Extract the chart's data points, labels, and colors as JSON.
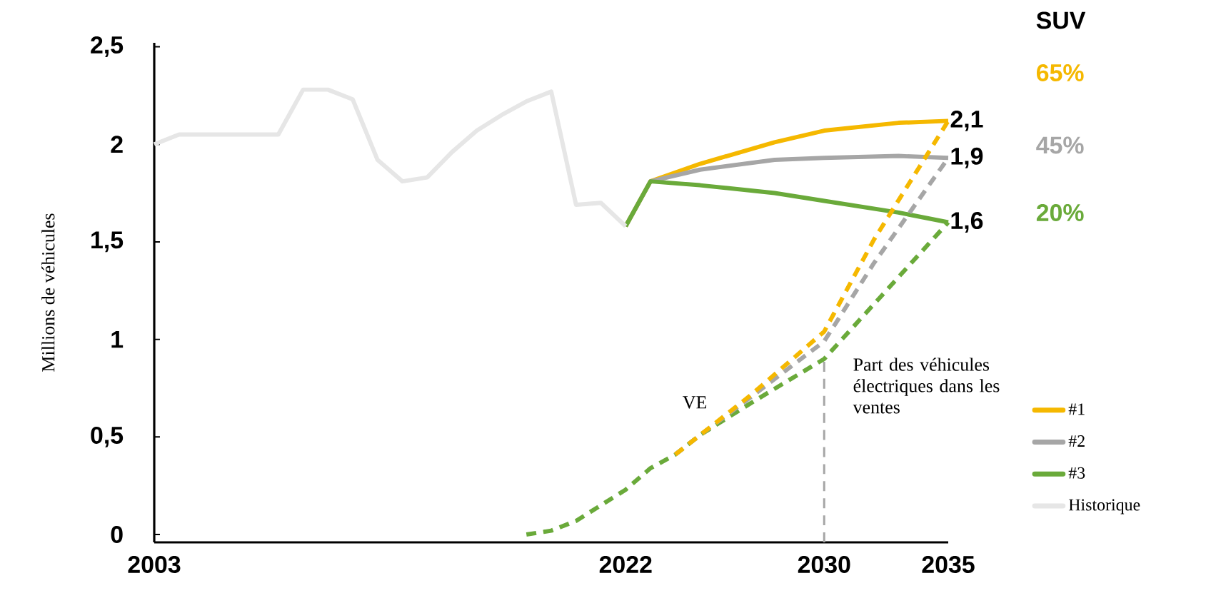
{
  "chart_data": {
    "type": "line",
    "ylabel": "Millions de véhicules",
    "xlim": [
      2003,
      2035
    ],
    "xticks": [
      2003,
      2022,
      2030,
      2035
    ],
    "ylim": [
      -0.04,
      2.52
    ],
    "yticks": [
      0,
      {
        "value": 0.5,
        "label": "0,5"
      },
      1,
      {
        "value": 1.5,
        "label": "1,5"
      },
      2,
      {
        "value": 2.5,
        "label": "2,5"
      }
    ],
    "grid": false,
    "legend": "bottom right",
    "marker": "none",
    "series": [
      {
        "name": "#1",
        "color": "#f5b800",
        "line_style": "solid",
        "x": [
          2022,
          2023,
          2025,
          2028,
          2030,
          2033,
          2035
        ],
        "values": [
          1.58,
          1.81,
          1.9,
          2.01,
          2.07,
          2.11,
          2.12
        ],
        "value_labels": [
          null,
          null,
          null,
          null,
          null,
          null,
          "2,1"
        ]
      },
      {
        "name": "#2",
        "color": "#a6a6a6",
        "line_style": "solid",
        "x": [
          2022,
          2023,
          2025,
          2028,
          2030,
          2033,
          2035
        ],
        "values": [
          1.58,
          1.81,
          1.87,
          1.92,
          1.93,
          1.94,
          1.93
        ],
        "value_labels": [
          null,
          null,
          null,
          null,
          null,
          null,
          "1,9"
        ]
      },
      {
        "name": "#3",
        "color": "#6aaa3a",
        "line_style": "solid",
        "x": [
          2022,
          2023,
          2025,
          2028,
          2030,
          2033,
          2035
        ],
        "values": [
          1.58,
          1.81,
          1.79,
          1.75,
          1.71,
          1.65,
          1.6
        ],
        "value_labels": [
          null,
          null,
          null,
          null,
          null,
          null,
          "1,6"
        ]
      },
      {
        "name": "Historique",
        "color": "#e6e6e6",
        "line_style": "solid",
        "x": [
          2003,
          2004,
          2005,
          2006,
          2007,
          2008,
          2009,
          2010,
          2011,
          2012,
          2013,
          2014,
          2015,
          2016,
          2017,
          2018,
          2019,
          2020,
          2021,
          2022
        ],
        "values": [
          2.0,
          2.05,
          2.05,
          2.05,
          2.05,
          2.05,
          2.28,
          2.28,
          2.23,
          1.92,
          1.81,
          1.83,
          1.96,
          2.07,
          2.15,
          2.22,
          2.27,
          1.69,
          1.7,
          1.58
        ]
      },
      {
        "color": "#6aaa3a",
        "line_style": "dashed",
        "x": [
          2018,
          2019,
          2020,
          2021,
          2022,
          2023,
          2024,
          2025,
          2027,
          2030,
          2033,
          2035
        ],
        "values": [
          0.0,
          0.02,
          0.07,
          0.15,
          0.23,
          0.34,
          0.41,
          0.51,
          0.67,
          0.9,
          1.32,
          1.6
        ]
      },
      {
        "color": "#a6a6a6",
        "line_style": "dashed",
        "x": [
          2024,
          2025,
          2027,
          2030,
          2032,
          2035
        ],
        "values": [
          0.41,
          0.51,
          0.7,
          0.99,
          1.39,
          1.93
        ]
      },
      {
        "color": "#f5b800",
        "line_style": "dashed",
        "x": [
          2024,
          2025,
          2027,
          2030,
          2032,
          2035
        ],
        "values": [
          0.41,
          0.51,
          0.71,
          1.04,
          1.51,
          2.12
        ]
      }
    ],
    "ref_lines": [
      {
        "axis": "x",
        "value": 2030,
        "label": "Part des véhicules électriques dans les ventes",
        "color": "#a6a6a6",
        "line_style": "dashed"
      }
    ],
    "annotations": [
      "SUV",
      "65%",
      "45%",
      "20%",
      "VE"
    ]
  }
}
